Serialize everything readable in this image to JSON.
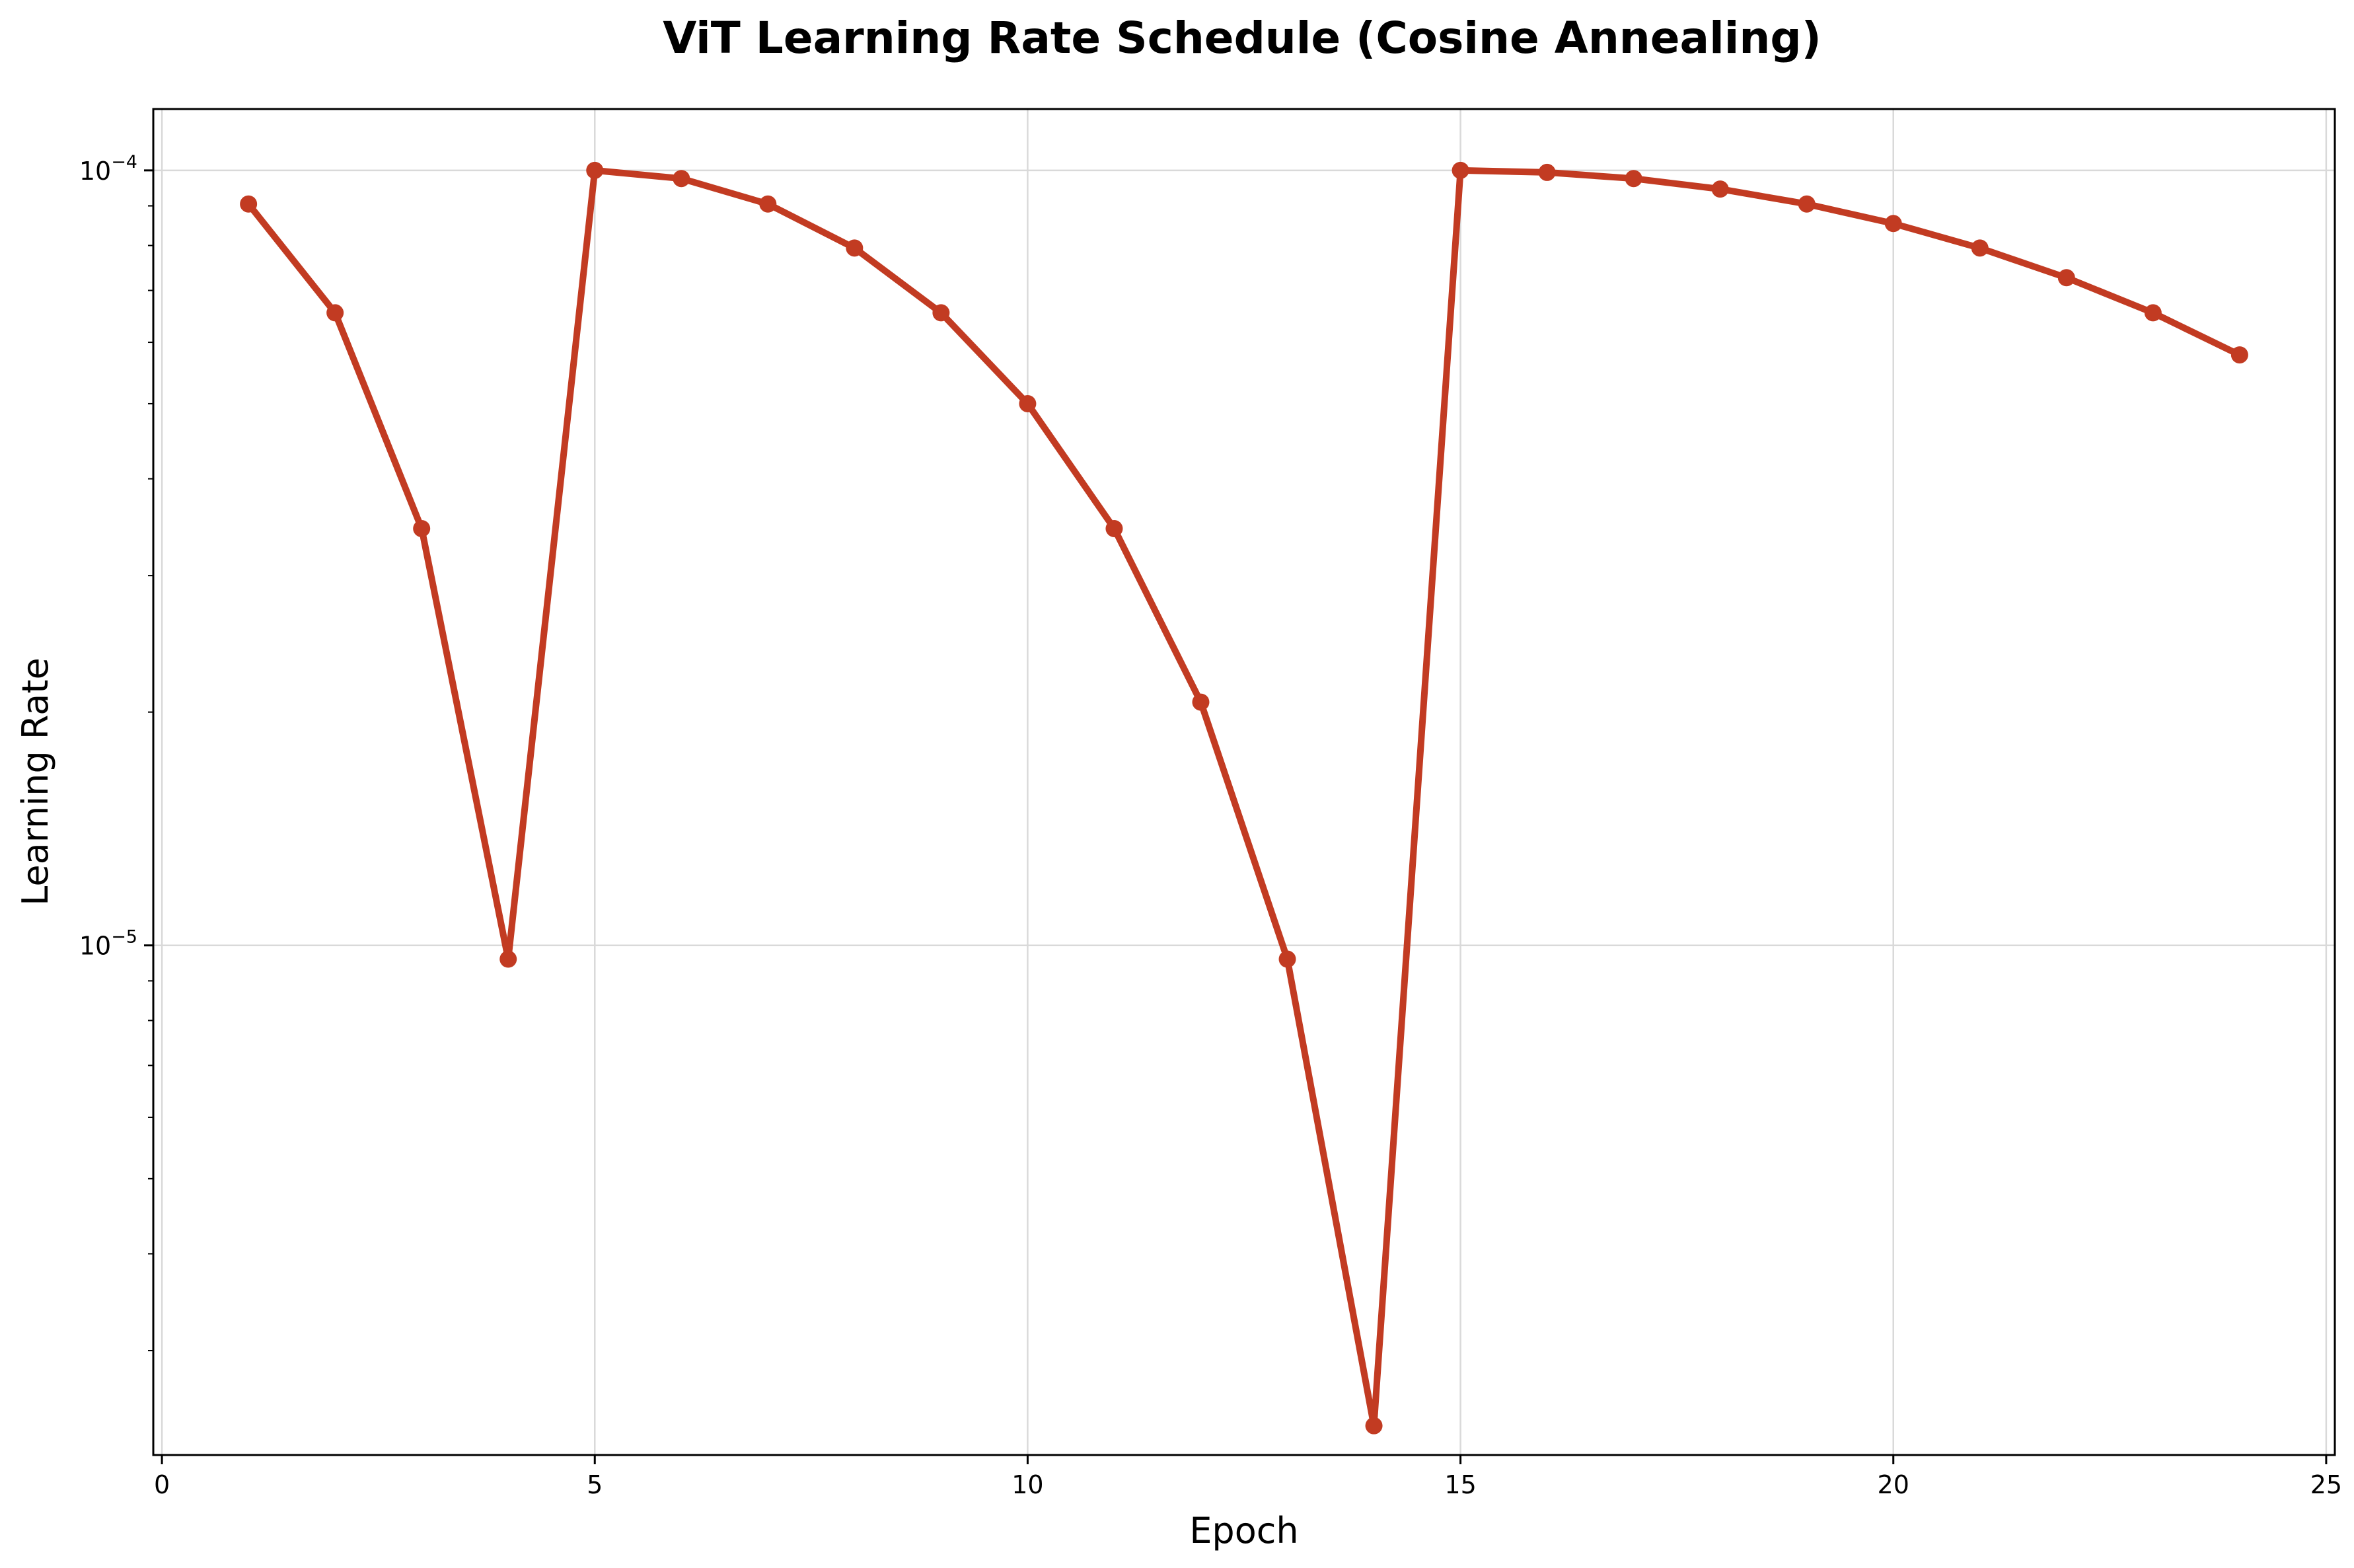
{
  "chart_data": {
    "type": "line",
    "title": "ViT Learning Rate Schedule (Cosine Annealing)",
    "xlabel": "Epoch",
    "ylabel": "Learning Rate",
    "x_scale": "linear",
    "y_scale": "log",
    "xlim": [
      -0.1,
      25.1
    ],
    "ylim": [
      2.2e-06,
      0.00012
    ],
    "x_ticks": [
      0,
      5,
      10,
      15,
      20,
      25
    ],
    "x_tick_labels": [
      "0",
      "5",
      "10",
      "15",
      "20",
      "25"
    ],
    "y_ticks": [
      1e-05,
      0.0001
    ],
    "y_tick_labels": [
      {
        "base": "10",
        "exponent": "−5"
      },
      {
        "base": "10",
        "exponent": "−4"
      }
    ],
    "y_minor_ticks": [
      3e-06,
      4e-06,
      5e-06,
      6e-06,
      7e-06,
      8e-06,
      9e-06,
      2e-05,
      3e-05,
      4e-05,
      5e-05,
      6e-05,
      7e-05,
      8e-05,
      9e-05
    ],
    "grid": true,
    "legend": "none",
    "colors": {
      "line": "#c23b22",
      "grid": "#d9d9d9",
      "axes": "#000000",
      "background": "#ffffff"
    },
    "series": [
      {
        "x": [
          1,
          2,
          3,
          4,
          5,
          6,
          7,
          8,
          9,
          10,
          11,
          12,
          13,
          14,
          15,
          16,
          17,
          18,
          19,
          20,
          21,
          22,
          23,
          24
        ],
        "values": [
          9.05e-05,
          6.55e-05,
          3.45e-05,
          9.6e-06,
          0.0001,
          9.76e-05,
          9.05e-05,
          7.94e-05,
          6.55e-05,
          5e-05,
          3.45e-05,
          2.06e-05,
          9.6e-06,
          2.4e-06,
          0.0001,
          9.94e-05,
          9.76e-05,
          9.46e-05,
          9.05e-05,
          8.54e-05,
          7.94e-05,
          7.27e-05,
          6.55e-05,
          5.78e-05
        ]
      }
    ]
  }
}
